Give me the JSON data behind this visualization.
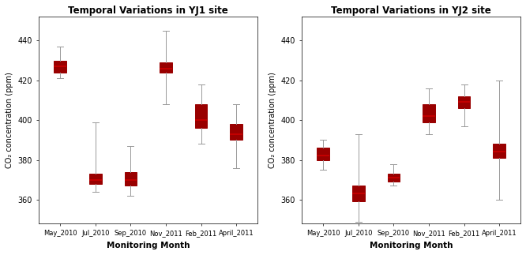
{
  "title1": "Temporal Variations in YJ1 site",
  "title2": "Temporal Variations in YJ2 site",
  "xlabel": "Monitoring Month",
  "ylabel": "CO₂ concentration (ppm)",
  "categories": [
    "May_2010",
    "Jul_2010",
    "Sep_2010",
    "Nov_2011",
    "Feb_2011",
    "April_2011"
  ],
  "ylim1": [
    348,
    452
  ],
  "ylim2": [
    348,
    452
  ],
  "yticks": [
    360,
    380,
    400,
    420,
    440
  ],
  "box_color": "#dd0000",
  "box_edge_color": "#990000",
  "whisker_color": "#999999",
  "median_color": "#cc0000",
  "yj1": [
    {
      "whislo": 421,
      "q1": 424,
      "med": 427,
      "q3": 430,
      "whishi": 437
    },
    {
      "whislo": 364,
      "q1": 368,
      "med": 370,
      "q3": 373,
      "whishi": 399
    },
    {
      "whislo": 362,
      "q1": 367,
      "med": 370,
      "q3": 374,
      "whishi": 387
    },
    {
      "whislo": 408,
      "q1": 424,
      "med": 426,
      "q3": 429,
      "whishi": 445
    },
    {
      "whislo": 388,
      "q1": 396,
      "med": 400,
      "q3": 408,
      "whishi": 418
    },
    {
      "whislo": 376,
      "q1": 390,
      "med": 393,
      "q3": 398,
      "whishi": 408
    }
  ],
  "yj2": [
    {
      "whislo": 375,
      "q1": 380,
      "med": 382,
      "q3": 386,
      "whishi": 390
    },
    {
      "whislo": 349,
      "q1": 359,
      "med": 363,
      "q3": 367,
      "whishi": 393
    },
    {
      "whislo": 367,
      "q1": 369,
      "med": 371,
      "q3": 373,
      "whishi": 378
    },
    {
      "whislo": 393,
      "q1": 399,
      "med": 402,
      "q3": 408,
      "whishi": 416
    },
    {
      "whislo": 397,
      "q1": 406,
      "med": 409,
      "q3": 412,
      "whishi": 418
    },
    {
      "whislo": 360,
      "q1": 381,
      "med": 384,
      "q3": 388,
      "whishi": 420
    }
  ],
  "figsize": [
    6.66,
    3.23
  ],
  "dpi": 100
}
